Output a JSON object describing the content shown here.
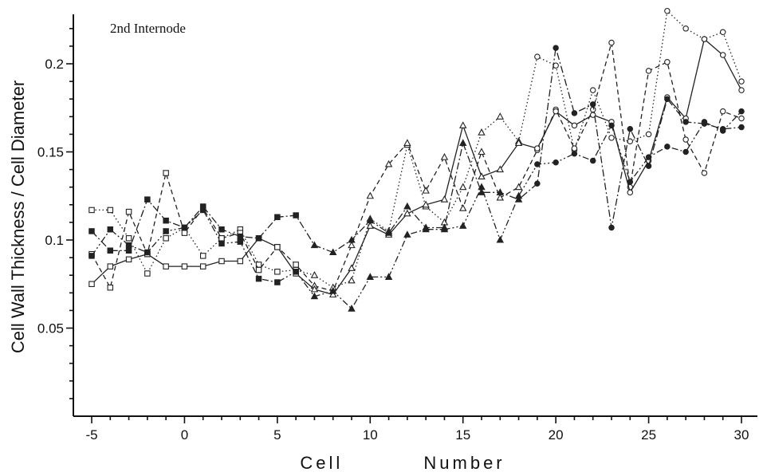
{
  "chart_data": {
    "type": "line",
    "annotation": "2nd Internode",
    "xlabel": "Cell          Number",
    "ylabel": "Cell Wall Thickness / Cell Diameter",
    "xlim": [
      -5.5,
      30.5
    ],
    "ylim": [
      0,
      0.245
    ],
    "xticks": [
      -5,
      0,
      5,
      10,
      15,
      20,
      25,
      30
    ],
    "xtick_labels": [
      "-5",
      "0",
      "5",
      "10",
      "15",
      "20",
      "25",
      "30"
    ],
    "yticks": [
      0.05,
      0.1,
      0.15,
      0.2
    ],
    "ytick_labels": [
      "0.05",
      "0.1",
      "0.15",
      "0.2"
    ],
    "grid": false,
    "legend": "none",
    "marker_note": "squares for cells -5 to 6, triangles for cells 7 to 18, circles for cells 19 to 30",
    "x": [
      -5,
      -4,
      -3,
      -2,
      -1,
      0,
      1,
      2,
      3,
      4,
      5,
      6,
      7,
      8,
      9,
      10,
      11,
      12,
      13,
      14,
      15,
      16,
      17,
      18,
      19,
      20,
      21,
      22,
      23,
      24,
      25,
      26,
      27,
      28,
      29,
      30
    ],
    "series": [
      {
        "style": "dotted",
        "filled": false,
        "values": [
          0.117,
          0.117,
          0.101,
          0.081,
          0.101,
          0.107,
          0.091,
          0.101,
          0.106,
          0.086,
          0.082,
          0.083,
          0.08,
          0.073,
          0.077,
          0.112,
          0.105,
          0.154,
          0.119,
          0.11,
          0.13,
          0.161,
          0.17,
          0.156,
          0.204,
          0.199,
          0.151,
          0.185,
          0.158,
          0.156,
          0.16,
          0.23,
          0.22,
          0.214,
          0.218,
          0.19
        ]
      },
      {
        "style": "dashed",
        "filled": false,
        "values": [
          0.092,
          0.073,
          0.116,
          0.092,
          0.138,
          0.104,
          0.118,
          0.101,
          0.104,
          0.083,
          0.096,
          0.086,
          0.074,
          0.071,
          0.097,
          0.125,
          0.143,
          0.155,
          0.128,
          0.147,
          0.118,
          0.15,
          0.124,
          0.13,
          0.151,
          0.174,
          0.152,
          0.174,
          0.212,
          0.13,
          0.196,
          0.201,
          0.157,
          0.138,
          0.173,
          0.169
        ]
      },
      {
        "style": "solid",
        "filled": false,
        "values": [
          0.075,
          0.085,
          0.089,
          0.092,
          0.085,
          0.085,
          0.085,
          0.088,
          0.088,
          0.101,
          0.096,
          0.081,
          0.072,
          0.069,
          0.084,
          0.108,
          0.103,
          0.115,
          0.12,
          0.123,
          0.165,
          0.136,
          0.14,
          0.155,
          0.152,
          0.173,
          0.165,
          0.171,
          0.167,
          0.127,
          0.145,
          0.181,
          0.169,
          0.214,
          0.205,
          0.185
        ]
      },
      {
        "style": "dash-dot",
        "filled": true,
        "values": [
          0.105,
          0.094,
          0.094,
          0.123,
          0.111,
          0.107,
          0.119,
          0.106,
          0.102,
          0.101,
          0.113,
          0.114,
          0.097,
          0.093,
          0.1,
          0.111,
          0.104,
          0.119,
          0.107,
          0.107,
          0.155,
          0.127,
          0.127,
          0.123,
          0.132,
          0.209,
          0.172,
          0.177,
          0.107,
          0.163,
          0.142,
          0.18,
          0.167,
          0.166,
          0.163,
          0.164
        ]
      },
      {
        "style": "dash-dot-dot",
        "filled": true,
        "values": [
          0.091,
          0.106,
          0.097,
          0.093,
          0.105,
          0.107,
          0.117,
          0.098,
          0.099,
          0.078,
          0.076,
          0.082,
          0.068,
          0.071,
          0.061,
          0.079,
          0.079,
          0.103,
          0.106,
          0.106,
          0.108,
          0.13,
          0.1,
          0.125,
          0.143,
          0.144,
          0.149,
          0.145,
          0.165,
          0.133,
          0.147,
          0.153,
          0.15,
          0.167,
          0.162,
          0.173
        ]
      }
    ]
  }
}
